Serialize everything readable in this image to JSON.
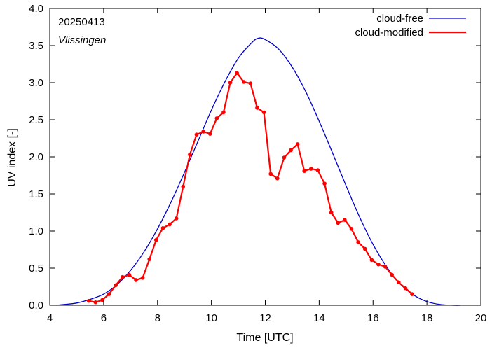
{
  "chart_data": {
    "type": "line",
    "title": "",
    "annotations": {
      "date": "20250413",
      "location": "Vlissingen"
    },
    "xlabel": "Time  [UTC]",
    "ylabel": "UV index  [-]",
    "xlim": [
      4,
      20
    ],
    "ylim": [
      0,
      4.0
    ],
    "xticks": [
      "4",
      "6",
      "8",
      "10",
      "12",
      "14",
      "16",
      "18",
      "20"
    ],
    "yticks": [
      "0.0",
      "0.5",
      "1.0",
      "1.5",
      "2.0",
      "2.5",
      "3.0",
      "3.5",
      "4.0"
    ],
    "grid": false,
    "legend_position": "top-right",
    "series": [
      {
        "name": "cloud-free",
        "color": "#0000cc",
        "style": "line",
        "peak": {
          "x": 11.75,
          "y": 3.6
        },
        "x": [
          4.25,
          4.5,
          5.0,
          5.5,
          6.0,
          6.5,
          7.0,
          7.5,
          8.0,
          8.5,
          9.0,
          9.5,
          10.0,
          10.5,
          11.0,
          11.5,
          11.75,
          12.0,
          12.5,
          13.0,
          13.5,
          14.0,
          14.5,
          15.0,
          15.5,
          16.0,
          16.5,
          17.0,
          17.5,
          18.0,
          18.5,
          19.0,
          19.25
        ],
        "y": [
          0.0,
          0.01,
          0.03,
          0.08,
          0.15,
          0.28,
          0.47,
          0.72,
          1.03,
          1.39,
          1.79,
          2.21,
          2.63,
          3.01,
          3.33,
          3.54,
          3.6,
          3.58,
          3.45,
          3.21,
          2.88,
          2.48,
          2.05,
          1.61,
          1.19,
          0.82,
          0.52,
          0.29,
          0.14,
          0.05,
          0.01,
          0.0,
          0.0
        ]
      },
      {
        "name": "cloud-modified",
        "color": "#ff0000",
        "style": "line-points",
        "x": [
          5.45,
          5.7,
          5.95,
          6.2,
          6.45,
          6.7,
          6.95,
          7.2,
          7.45,
          7.7,
          7.95,
          8.2,
          8.45,
          8.7,
          8.95,
          9.2,
          9.45,
          9.7,
          9.95,
          10.2,
          10.45,
          10.7,
          10.95,
          11.2,
          11.45,
          11.7,
          11.95,
          12.2,
          12.45,
          12.7,
          12.95,
          13.2,
          13.45,
          13.7,
          13.95,
          14.2,
          14.45,
          14.7,
          14.95,
          15.2,
          15.45,
          15.7,
          15.95,
          16.2,
          16.45,
          16.7,
          16.95,
          17.2,
          17.45
        ],
        "y": [
          0.06,
          0.04,
          0.07,
          0.15,
          0.27,
          0.38,
          0.41,
          0.34,
          0.37,
          0.62,
          0.88,
          1.04,
          1.09,
          1.17,
          1.6,
          2.03,
          2.3,
          2.34,
          2.31,
          2.52,
          2.6,
          3.0,
          3.13,
          3.01,
          2.99,
          2.66,
          2.6,
          1.77,
          1.71,
          1.99,
          2.09,
          2.17,
          1.81,
          1.84,
          1.82,
          1.64,
          1.25,
          1.11,
          1.15,
          1.03,
          0.85,
          0.76,
          0.61,
          0.55,
          0.52,
          0.41,
          0.31,
          0.23,
          0.15
        ]
      }
    ]
  }
}
